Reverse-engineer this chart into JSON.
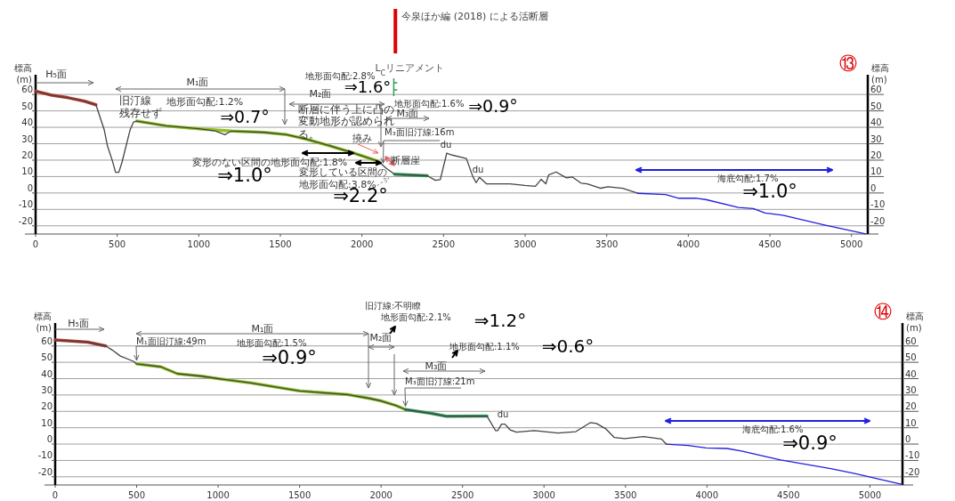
{
  "chart_data": [
    {
      "type": "line",
      "title": "⑬",
      "ylabel": "標高 (m)",
      "y2label": "標高 (m)",
      "xlim": [
        0,
        5100
      ],
      "ylim": [
        -25,
        72
      ],
      "y2lim": [
        -25,
        72
      ],
      "xticks": [
        0,
        500,
        1000,
        1500,
        2000,
        2500,
        3000,
        3500,
        4000,
        4500,
        5000
      ],
      "yticks": [
        -20,
        -10,
        0,
        10,
        20,
        30,
        40,
        50,
        60
      ],
      "y2ticks": [
        -20,
        -10,
        0,
        10,
        20,
        30,
        40,
        50,
        60
      ],
      "grid": "y",
      "series": [
        {
          "color": "#c0392b",
          "x": [
            0,
            100,
            200,
            300,
            370
          ],
          "values": [
            62,
            59.5,
            58,
            55.9,
            53.7
          ]
        },
        {
          "color": "#8fc31f",
          "x": [
            620,
            800,
            1000,
            1200,
            1400,
            1540,
            1650,
            1800,
            1950,
            2100
          ],
          "values": [
            43.8,
            40.9,
            39.1,
            37.7,
            36.9,
            35.5,
            33,
            28.8,
            24.3,
            19.3
          ]
        },
        {
          "color": "#2e9e5b",
          "x": [
            2200,
            2400
          ],
          "values": [
            11.4,
            10.5
          ]
        },
        {
          "color": "#444444",
          "x": [
            0,
            100,
            200,
            300,
            370,
            420,
            440,
            470,
            490,
            510,
            530,
            580,
            600,
            620,
            800,
            1000,
            1100,
            1160,
            1200,
            1400,
            1540,
            1650,
            1800,
            1950,
            2100,
            2150,
            2200,
            2400,
            2450,
            2480,
            2520,
            2540,
            2640,
            2680,
            2700,
            2720,
            2763,
            2907,
            2999,
            3063,
            3098,
            3127,
            3144,
            3190,
            3253,
            3290,
            3343,
            3381,
            3463,
            3507,
            3599,
            3690
          ],
          "values": [
            62,
            59.5,
            58,
            55.9,
            53.7,
            38.7,
            28.8,
            19.8,
            12.6,
            12.6,
            18.9,
            38.7,
            43.2,
            43.8,
            40.9,
            39.1,
            37.8,
            35.5,
            37.7,
            36.9,
            35.5,
            33,
            28.8,
            24.3,
            19.3,
            15,
            11.4,
            10.5,
            7.7,
            8.1,
            24.3,
            23.4,
            21,
            9.9,
            6.3,
            9.5,
            5.6,
            5.6,
            4.6,
            4.1,
            8.3,
            5.6,
            11,
            12.8,
            9.2,
            9.7,
            6,
            5.6,
            2.9,
            3.8,
            2.8,
            -0.2
          ]
        },
        {
          "color": "#2020e0",
          "x": [
            3690,
            3861,
            3942,
            4052,
            4107,
            4307,
            4398,
            4471,
            4580,
            4835,
            5088
          ],
          "values": [
            -0.2,
            -1,
            -3.2,
            -3.2,
            -4,
            -8.8,
            -9.5,
            -12.2,
            -13.6,
            -19.5,
            -24.9
          ]
        }
      ],
      "ref_lines": [
        {
          "axis": "x",
          "value": 2195,
          "label": "L$_{C}$リニアメント",
          "color": "#2e9e5b"
        },
        {
          "axis": "x",
          "value": 2205,
          "label": "今泉ほか編 (2018) による活断層",
          "color": "#e00000"
        }
      ],
      "annotations": [
        "H₅面",
        "M₁面",
        "旧汀線",
        "残存せず",
        "地形面勾配:1.2%",
        "⇒0.7°",
        "変形のない区間の地形面勾配:1.8%",
        "⇒1.0°",
        "地形面勾配:2.8%",
        "M₂面",
        "⇒1.6°",
        "断層に伴う上に凸の",
        "変動地形が認められ",
        "る。",
        "地形面勾配:1.6%",
        "⇒0.9°",
        "M₃面",
        {
          "text": "M₃面旧汀線:16m",
          "x": 2130,
          "y": 16
        },
        "du",
        "du",
        "撓み",
        "断層崖",
        "変形している区間の",
        "地形面勾配:3.8%",
        "⇒2.2°",
        "海底勾配:1.7%",
        "⇒1.0°"
      ]
    },
    {
      "type": "line",
      "title": "⑭",
      "ylabel": "標高 (m)",
      "y2label": "標高 (m)",
      "xlim": [
        0,
        5200
      ],
      "ylim": [
        -25,
        74
      ],
      "y2lim": [
        -25,
        74
      ],
      "xticks": [
        0,
        500,
        1000,
        1500,
        2000,
        2500,
        3000,
        3500,
        4000,
        4500,
        5000
      ],
      "yticks": [
        -20,
        -10,
        0,
        10,
        20,
        30,
        40,
        50,
        60
      ],
      "y2ticks": [
        -20,
        -10,
        0,
        10,
        20,
        30,
        40,
        50,
        60
      ],
      "grid": "y",
      "series": [
        {
          "color": "#c0392b",
          "x": [
            0,
            200,
            310
          ],
          "values": [
            63.6,
            62.3,
            60
          ]
        },
        {
          "color": "#8fc31f",
          "x": [
            500,
            650,
            750,
            900,
            1000,
            1200,
            1500,
            1800,
            1930,
            2000,
            2090,
            2150
          ],
          "values": [
            49,
            47.2,
            43,
            41.5,
            40,
            37.4,
            32.5,
            30.2,
            27.9,
            26.4,
            23.6,
            21.1
          ]
        },
        {
          "color": "#2e9e5b",
          "x": [
            2150,
            2300,
            2400,
            2650
          ],
          "values": [
            21.1,
            18.9,
            17,
            17.1
          ]
        },
        {
          "color": "#444444",
          "x": [
            0,
            200,
            310,
            350,
            400,
            480,
            500,
            650,
            750,
            900,
            1000,
            1200,
            1500,
            1800,
            1930,
            2000,
            2090,
            2150,
            2300,
            2400,
            2650,
            2703,
            2716,
            2739,
            2760,
            2792,
            2830,
            2940,
            3085,
            3195,
            3284,
            3322,
            3377,
            3432,
            3495,
            3612,
            3721,
            3750
          ],
          "values": [
            63.6,
            62.3,
            60,
            57.5,
            53.8,
            50.6,
            49,
            47.2,
            43,
            41.5,
            40,
            37.4,
            32.5,
            30.2,
            27.9,
            26.4,
            23.6,
            21.1,
            18.9,
            17,
            17.1,
            8.2,
            8.2,
            12.2,
            12.2,
            8.7,
            7.3,
            8.2,
            6.7,
            7.6,
            13.1,
            12.6,
            9.5,
            4,
            3.3,
            4.6,
            3.1,
            0
          ]
        },
        {
          "color": "#2020e0",
          "x": [
            3750,
            3885,
            3995,
            4124,
            4213,
            4452,
            4760,
            4907,
            5198
          ],
          "values": [
            0,
            -0.9,
            -2.4,
            -2.7,
            -4.3,
            -9.7,
            -15,
            -18,
            -24.6
          ]
        }
      ],
      "annotations": [
        "H₅面",
        "M₁面",
        {
          "text": "M₁面旧汀線:49m",
          "x": 500,
          "y": 49
        },
        "地形面勾配:1.5%",
        "⇒0.9°",
        "M₂面",
        "旧汀線:不明瞭",
        "地形面勾配:2.1%",
        "⇒1.2°",
        "地形面勾配:1.1%",
        "⇒0.6°",
        "M₃面",
        {
          "text": "M₃面旧汀線:21m",
          "x": 2150,
          "y": 21
        },
        "du",
        "海底勾配:1.6%",
        "⇒0.9°"
      ]
    }
  ]
}
